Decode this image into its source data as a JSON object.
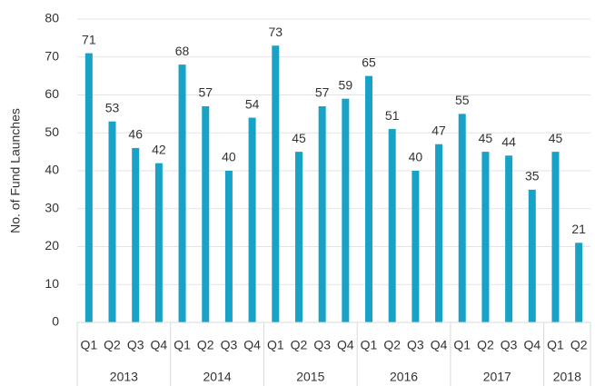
{
  "chart_data": {
    "type": "bar",
    "ylabel": "No. of Fund Launches",
    "groups": [
      {
        "name": "2013",
        "categories": [
          "Q1",
          "Q2",
          "Q3",
          "Q4"
        ]
      },
      {
        "name": "2014",
        "categories": [
          "Q1",
          "Q2",
          "Q3",
          "Q4"
        ]
      },
      {
        "name": "2015",
        "categories": [
          "Q1",
          "Q2",
          "Q3",
          "Q4"
        ]
      },
      {
        "name": "2016",
        "categories": [
          "Q1",
          "Q2",
          "Q3",
          "Q4"
        ]
      },
      {
        "name": "2017",
        "categories": [
          "Q1",
          "Q2",
          "Q3",
          "Q4"
        ]
      },
      {
        "name": "2018",
        "categories": [
          "Q1",
          "Q2"
        ]
      }
    ],
    "values": [
      71,
      53,
      46,
      42,
      68,
      57,
      40,
      54,
      73,
      45,
      57,
      59,
      65,
      51,
      40,
      47,
      55,
      45,
      44,
      35,
      45,
      21
    ],
    "color": "#18a3c6",
    "ylim": [
      0,
      80
    ],
    "yticks": [
      0,
      10,
      20,
      30,
      40,
      50,
      60,
      70,
      80
    ],
    "grid": true
  }
}
